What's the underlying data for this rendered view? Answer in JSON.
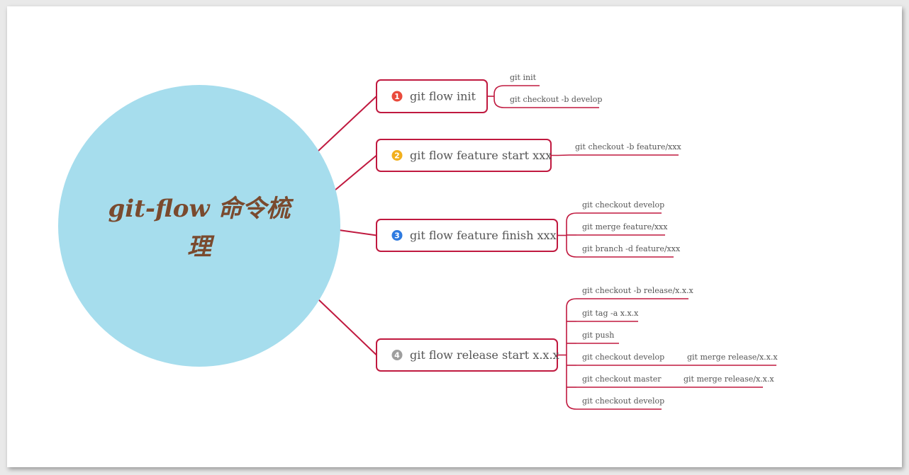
{
  "colors": {
    "line": "#c0193f",
    "root_fill": "#a6dded",
    "root_text": "#7a4a2e",
    "branch_text": "#555555",
    "leaf_text": "#555555",
    "badges": [
      "#e94b3c",
      "#f2b01e",
      "#2f7be0",
      "#9e9e9e"
    ]
  },
  "root": {
    "title_line1": "git-flow 命令梳",
    "title_line2": "理"
  },
  "branches": [
    {
      "badge": "1",
      "label": "git flow init",
      "children": [
        {
          "label": "git init"
        },
        {
          "label": "git checkout -b develop"
        }
      ]
    },
    {
      "badge": "2",
      "label": "git flow feature start xxx",
      "children": [
        {
          "label": "git checkout -b feature/xxx"
        }
      ]
    },
    {
      "badge": "3",
      "label": "git flow feature finish xxx",
      "children": [
        {
          "label": "git checkout develop"
        },
        {
          "label": "git merge feature/xxx"
        },
        {
          "label": "git branch -d feature/xxx"
        }
      ]
    },
    {
      "badge": "4",
      "label": "git flow release start x.x.x",
      "children": [
        {
          "label": "git checkout -b release/x.x.x"
        },
        {
          "label": "git tag -a x.x.x"
        },
        {
          "label": "git push"
        },
        {
          "label": "git checkout develop",
          "child": "git merge release/x.x.x"
        },
        {
          "label": "git checkout master",
          "child": "git merge release/x.x.x"
        },
        {
          "label": "git checkout develop"
        }
      ]
    }
  ]
}
